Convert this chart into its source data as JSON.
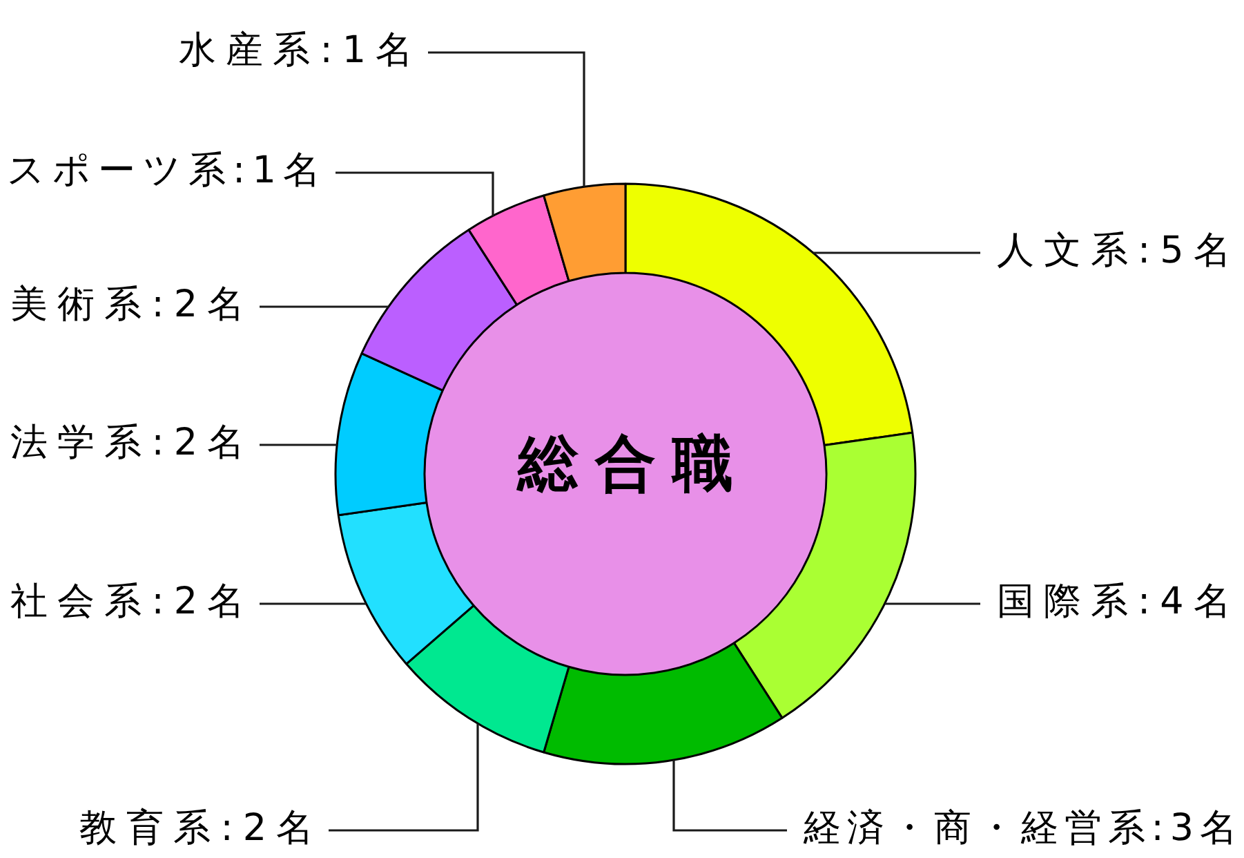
{
  "chart_data": {
    "type": "donut",
    "title": "総合職",
    "categories": [
      "人文系:5名",
      "国際系:4名",
      "経済・商・経営系:3名",
      "教育系:2名",
      "社会系:2名",
      "法学系:2名",
      "美術系:2名",
      "スポーツ系:1名",
      "水産系:1名"
    ],
    "values": [
      5,
      4,
      3,
      2,
      2,
      2,
      2,
      1,
      1
    ],
    "colors": [
      "#eeff00",
      "#aaff33",
      "#00bb00",
      "#00e890",
      "#22e0ff",
      "#00ccff",
      "#bb5fff",
      "#ff66cc",
      "#ff9d33"
    ]
  }
}
